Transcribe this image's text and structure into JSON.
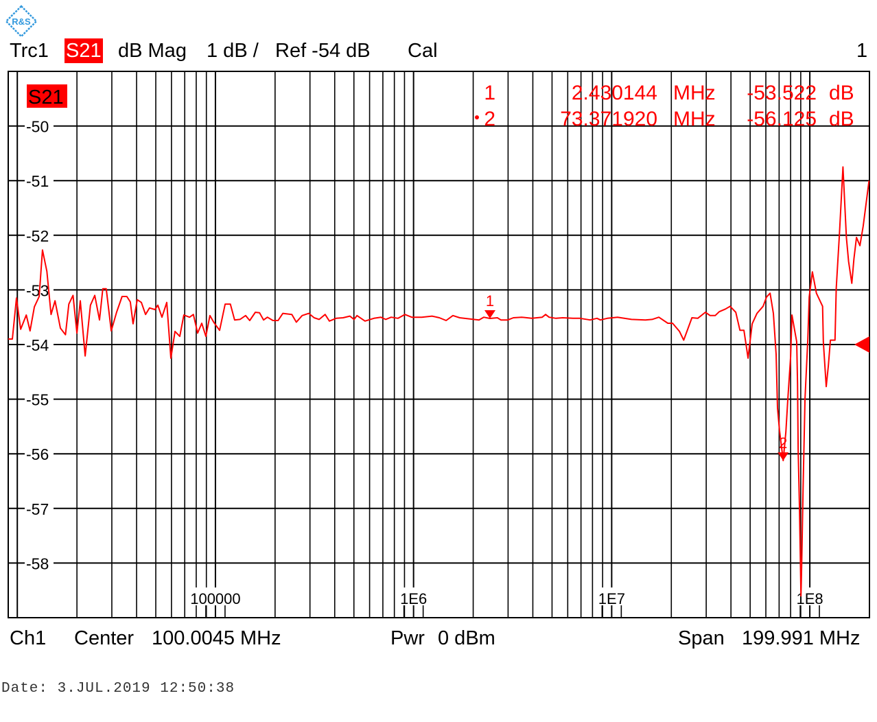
{
  "logo": {
    "text": "R&S",
    "color": "#3399dd"
  },
  "header": {
    "trace": "Trc1",
    "param": "S21",
    "format": "dB Mag",
    "scale": "1 dB /",
    "ref": "Ref -54 dB",
    "cal": "Cal",
    "window": "1"
  },
  "footer": {
    "channel": "Ch1",
    "center_label": "Center",
    "center_value": "100.0045 MHz",
    "pwr_label": "Pwr",
    "pwr_value": "0 dBm",
    "span_label": "Span",
    "span_value": "199.991 MHz",
    "date": "Date: 3.JUL.2019  12:50:38"
  },
  "markers": [
    {
      "id": "1",
      "freq": "2.430144",
      "freq_unit": "MHz",
      "value": "-53.522",
      "value_unit": "dB",
      "x_hz": 2430144,
      "y_db": -53.522,
      "active": false
    },
    {
      "id": "2",
      "freq": "73.371920",
      "freq_unit": "MHz",
      "value": "-56.125",
      "value_unit": "dB",
      "x_hz": 73371920,
      "y_db": -56.125,
      "active": true
    }
  ],
  "chart_data": {
    "type": "line",
    "trace_label": "S21",
    "x_scale": "log",
    "xlim": [
      9000,
      200000000
    ],
    "ylim": [
      -59,
      -49
    ],
    "reference_level": -54,
    "grid": true,
    "colors": {
      "trace": "#ff0000",
      "grid": "#000000"
    },
    "yticks": [
      -50,
      -51,
      -52,
      -53,
      -54,
      -55,
      -56,
      -57,
      -58
    ],
    "ytick_labels": [
      "-50",
      "-51",
      "-52",
      "-53",
      "-54",
      "-55",
      "-56",
      "-57",
      "-58"
    ],
    "xticks": [
      100000,
      1000000,
      10000000,
      100000000
    ],
    "xtick_labels": [
      "100000",
      "1E6",
      "1E7",
      "1E8"
    ],
    "series": [
      {
        "x": [
          9000,
          9440,
          9900,
          10400,
          11100,
          11600,
          12200,
          12900,
          13400,
          14100,
          14800,
          15500,
          16500,
          17500,
          18200,
          19100,
          20000,
          20800,
          22000,
          23400,
          24600,
          26000,
          27000,
          28100,
          29800,
          31700,
          33800,
          35700,
          37200,
          38400,
          40300,
          42300,
          44400,
          46500,
          49500,
          51200,
          53700,
          56800,
          59600,
          62500,
          66100,
          69300,
          74000,
          77400,
          81300,
          85300,
          89500,
          93800,
          98400,
          105000,
          112000,
          119000,
          125000,
          133000,
          142000,
          149000,
          159000,
          167000,
          175000,
          183000,
          195000,
          207000,
          219000,
          243000,
          256000,
          274000,
          296000,
          315000,
          334000,
          358000,
          376000,
          407000,
          441000,
          477000,
          501000,
          518000,
          569000,
          631000,
          684000,
          723000,
          771000,
          835000,
          904000,
          979000,
          1100000,
          1240000,
          1350000,
          1460000,
          1580000,
          1710000,
          2010000,
          2140000,
          2260000,
          2430144,
          2650000,
          2760000,
          2990000,
          3190000,
          3510000,
          3950000,
          4460000,
          4640000,
          4830000,
          5230000,
          5660000,
          6380000,
          6920000,
          7780000,
          8430000,
          8770000,
          9500000,
          10700000,
          12600000,
          14800000,
          16000000,
          17300000,
          19200000,
          20300000,
          22000000,
          23100000,
          25400000,
          27200000,
          29700000,
          31400000,
          33300000,
          34900000,
          37500000,
          39600000,
          42300000,
          44400000,
          46500000,
          48800000,
          51200000,
          54100000,
          58100000,
          60500000,
          63000000,
          65500000,
          67600000,
          68700000,
          70300000,
          73371920,
          75700000,
          77500000,
          80000000,
          81300000,
          83200000,
          85900000,
          86700000,
          87300000,
          88700000,
          90200000,
          91000000,
          92500000,
          94600000,
          97700000,
          99300000,
          103000000,
          108000000,
          116000000,
          117000000,
          121000000,
          124000000,
          127000000,
          134000000,
          136000000,
          141000000,
          147000000,
          153000000,
          157000000,
          163000000,
          167000000,
          172000000,
          179000000,
          186000000,
          199000000
        ],
        "y": [
          -53.9,
          -53.9,
          -53.15,
          -53.72,
          -53.46,
          -53.75,
          -53.31,
          -53.12,
          -52.27,
          -52.66,
          -53.45,
          -53.2,
          -53.7,
          -53.82,
          -53.26,
          -53.1,
          -53.79,
          -53.2,
          -54.21,
          -53.28,
          -53.1,
          -53.55,
          -52.98,
          -52.98,
          -53.75,
          -53.41,
          -53.12,
          -53.12,
          -53.22,
          -53.62,
          -53.18,
          -53.23,
          -53.45,
          -53.33,
          -53.36,
          -53.28,
          -53.5,
          -53.23,
          -54.25,
          -53.76,
          -53.85,
          -53.46,
          -53.5,
          -53.45,
          -53.79,
          -53.61,
          -53.85,
          -53.47,
          -53.6,
          -53.74,
          -53.26,
          -53.26,
          -53.55,
          -53.54,
          -53.47,
          -53.56,
          -53.41,
          -53.42,
          -53.55,
          -53.5,
          -53.56,
          -53.56,
          -53.43,
          -53.45,
          -53.59,
          -53.47,
          -53.43,
          -53.51,
          -53.54,
          -53.45,
          -53.57,
          -53.52,
          -53.51,
          -53.48,
          -53.54,
          -53.47,
          -53.57,
          -53.52,
          -53.5,
          -53.54,
          -53.5,
          -53.52,
          -53.45,
          -53.5,
          -53.5,
          -53.48,
          -53.51,
          -53.56,
          -53.47,
          -53.51,
          -53.54,
          -53.55,
          -53.5,
          -53.522,
          -53.51,
          -53.55,
          -53.55,
          -53.51,
          -53.5,
          -53.52,
          -53.5,
          -53.45,
          -53.5,
          -53.52,
          -53.51,
          -53.52,
          -53.52,
          -53.55,
          -53.52,
          -53.55,
          -53.52,
          -53.5,
          -53.54,
          -53.55,
          -53.54,
          -53.5,
          -53.61,
          -53.61,
          -53.76,
          -53.92,
          -53.51,
          -53.52,
          -53.41,
          -53.47,
          -53.47,
          -53.4,
          -53.35,
          -53.3,
          -53.41,
          -53.74,
          -53.74,
          -54.25,
          -53.62,
          -53.43,
          -53.3,
          -53.13,
          -53.06,
          -53.43,
          -54.18,
          -55.16,
          -55.57,
          -56.125,
          -55.6,
          -54.99,
          -54.23,
          -53.46,
          -53.67,
          -53.95,
          -54.72,
          -55.92,
          -57.02,
          -58.6,
          -58.0,
          -56.63,
          -54.99,
          -53.9,
          -53.13,
          -52.67,
          -53.06,
          -53.3,
          -53.95,
          -54.77,
          -54.39,
          -53.92,
          -53.92,
          -52.97,
          -51.99,
          -50.75,
          -52.04,
          -52.48,
          -52.88,
          -52.43,
          -52.04,
          -52.19,
          -51.83,
          -51.0
        ]
      }
    ]
  }
}
